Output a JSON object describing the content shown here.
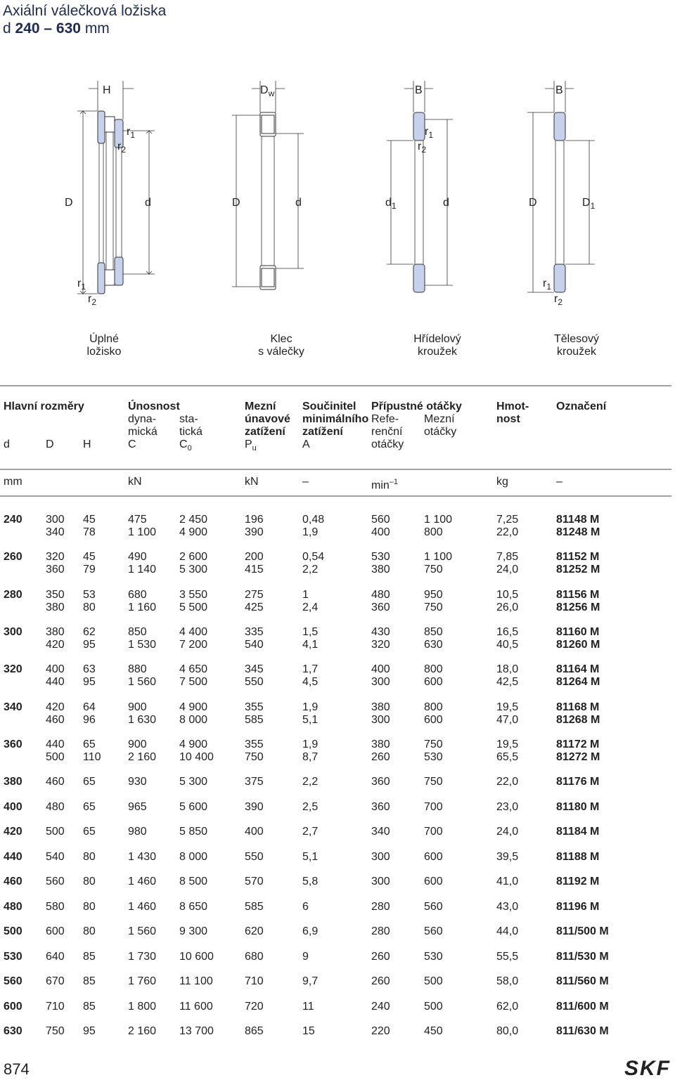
{
  "header": {
    "title": "Axiální válečková ložiska",
    "subtitle": {
      "symbol": "d",
      "range": "240 – 630",
      "unit": "mm"
    }
  },
  "figures": [
    {
      "caption": [
        "Úplné",
        "ložisko"
      ],
      "labels": [
        {
          "base": "H"
        },
        {
          "base": "r",
          "sub": "1"
        },
        {
          "base": "r",
          "sub": "2"
        },
        {
          "base": "D"
        },
        {
          "base": "d"
        },
        {
          "base": "r",
          "sub": "1"
        },
        {
          "base": "r",
          "sub": "2"
        }
      ]
    },
    {
      "caption": [
        "Klec",
        "s válečky"
      ],
      "labels": [
        {
          "base": "D",
          "sub": "w"
        },
        {
          "base": "D"
        },
        {
          "base": "d"
        }
      ]
    },
    {
      "caption": [
        "Hřídelový",
        "kroužek"
      ],
      "labels": [
        {
          "base": "B"
        },
        {
          "base": "r",
          "sub": "1"
        },
        {
          "base": "r",
          "sub": "2"
        },
        {
          "base": "d",
          "sub": "1"
        },
        {
          "base": "d"
        }
      ]
    },
    {
      "caption": [
        "Tělesový",
        "kroužek"
      ],
      "labels": [
        {
          "base": "B"
        },
        {
          "base": "D"
        },
        {
          "base": "D",
          "sub": "1"
        },
        {
          "base": "r",
          "sub": "1"
        },
        {
          "base": "r",
          "sub": "2"
        }
      ]
    }
  ],
  "table": {
    "headings": {
      "main": "Hlavní rozměry",
      "capacity": "Únosnost",
      "dynamic": [
        "dyna-",
        "mická"
      ],
      "static": [
        "sta-",
        "tická"
      ],
      "fatigue": [
        "Mezní",
        "únavové",
        "zatížení"
      ],
      "factor": [
        "Součinitel",
        "minimálního",
        "zatížení"
      ],
      "speeds": "Přípustné otáčky",
      "reference": [
        "Refe-",
        "renční",
        "otáčky"
      ],
      "limiting": [
        "Mezní",
        "otáčky"
      ],
      "mass": [
        "Hmot-",
        "nost"
      ],
      "designation": "Označení"
    },
    "symbols": [
      {
        "base": "d"
      },
      {
        "base": "D"
      },
      {
        "base": "H"
      },
      {
        "base": "C"
      },
      {
        "base": "C",
        "sub": "0"
      },
      {
        "base": "P",
        "sub": "u"
      },
      {
        "base": "A"
      }
    ],
    "units": [
      {
        "base": "mm"
      },
      {
        "base": "kN"
      },
      {
        "base": "kN"
      },
      {
        "base": "–"
      },
      {
        "base": "min",
        "sup": "–1"
      },
      {
        "base": "kg"
      },
      {
        "base": "–"
      }
    ],
    "groups": [
      {
        "d": "240",
        "rows": [
          [
            "300",
            "45",
            "475",
            "2 450",
            "196",
            "0,48",
            "560",
            "1 100",
            "7,25",
            "81148 M"
          ],
          [
            "340",
            "78",
            "1 100",
            "4 900",
            "390",
            "1,9",
            "400",
            "800",
            "22,0",
            "81248 M"
          ]
        ]
      },
      {
        "d": "260",
        "rows": [
          [
            "320",
            "45",
            "490",
            "2 600",
            "200",
            "0,54",
            "530",
            "1 100",
            "7,85",
            "81152 M"
          ],
          [
            "360",
            "79",
            "1 140",
            "5 300",
            "415",
            "2,2",
            "380",
            "750",
            "24,0",
            "81252 M"
          ]
        ]
      },
      {
        "d": "280",
        "rows": [
          [
            "350",
            "53",
            "680",
            "3 550",
            "275",
            "1",
            "480",
            "950",
            "10,5",
            "81156 M"
          ],
          [
            "380",
            "80",
            "1 160",
            "5 500",
            "425",
            "2,4",
            "360",
            "750",
            "26,0",
            "81256 M"
          ]
        ]
      },
      {
        "d": "300",
        "rows": [
          [
            "380",
            "62",
            "850",
            "4 400",
            "335",
            "1,5",
            "430",
            "850",
            "16,5",
            "81160 M"
          ],
          [
            "420",
            "95",
            "1 530",
            "7 200",
            "540",
            "4,1",
            "320",
            "630",
            "40,5",
            "81260 M"
          ]
        ]
      },
      {
        "d": "320",
        "rows": [
          [
            "400",
            "63",
            "880",
            "4 650",
            "345",
            "1,7",
            "400",
            "800",
            "18,0",
            "81164 M"
          ],
          [
            "440",
            "95",
            "1 560",
            "7 500",
            "550",
            "4,5",
            "300",
            "600",
            "42,5",
            "81264 M"
          ]
        ]
      },
      {
        "d": "340",
        "rows": [
          [
            "420",
            "64",
            "900",
            "4 900",
            "355",
            "1,9",
            "380",
            "800",
            "19,5",
            "81168 M"
          ],
          [
            "460",
            "96",
            "1 630",
            "8 000",
            "585",
            "5,1",
            "300",
            "600",
            "47,0",
            "81268 M"
          ]
        ]
      },
      {
        "d": "360",
        "rows": [
          [
            "440",
            "65",
            "900",
            "4 900",
            "355",
            "1,9",
            "380",
            "750",
            "19,5",
            "81172 M"
          ],
          [
            "500",
            "110",
            "2 160",
            "10 400",
            "750",
            "8,7",
            "260",
            "530",
            "65,5",
            "81272 M"
          ]
        ]
      },
      {
        "d": "380",
        "rows": [
          [
            "460",
            "65",
            "930",
            "5 300",
            "375",
            "2,2",
            "360",
            "750",
            "22,0",
            "81176 M"
          ]
        ]
      },
      {
        "d": "400",
        "rows": [
          [
            "480",
            "65",
            "965",
            "5 600",
            "390",
            "2,5",
            "360",
            "700",
            "23,0",
            "81180 M"
          ]
        ]
      },
      {
        "d": "420",
        "rows": [
          [
            "500",
            "65",
            "980",
            "5 850",
            "400",
            "2,7",
            "340",
            "700",
            "24,0",
            "81184 M"
          ]
        ]
      },
      {
        "d": "440",
        "rows": [
          [
            "540",
            "80",
            "1 430",
            "8 000",
            "550",
            "5,1",
            "300",
            "600",
            "39,5",
            "81188 M"
          ]
        ]
      },
      {
        "d": "460",
        "rows": [
          [
            "560",
            "80",
            "1 460",
            "8 500",
            "570",
            "5,8",
            "300",
            "600",
            "41,0",
            "81192 M"
          ]
        ]
      },
      {
        "d": "480",
        "rows": [
          [
            "580",
            "80",
            "1 460",
            "8 650",
            "585",
            "6",
            "280",
            "560",
            "43,0",
            "81196 M"
          ]
        ]
      },
      {
        "d": "500",
        "rows": [
          [
            "600",
            "80",
            "1 560",
            "9 300",
            "620",
            "6,9",
            "280",
            "560",
            "44,0",
            "811/500 M"
          ]
        ]
      },
      {
        "d": "530",
        "rows": [
          [
            "640",
            "85",
            "1 730",
            "10 600",
            "680",
            "9",
            "260",
            "530",
            "55,5",
            "811/530 M"
          ]
        ]
      },
      {
        "d": "560",
        "rows": [
          [
            "670",
            "85",
            "1 760",
            "11 100",
            "710",
            "9,7",
            "260",
            "500",
            "58,0",
            "811/560 M"
          ]
        ]
      },
      {
        "d": "600",
        "rows": [
          [
            "710",
            "85",
            "1 800",
            "11 600",
            "720",
            "11",
            "240",
            "500",
            "62,0",
            "811/600 M"
          ]
        ]
      },
      {
        "d": "630",
        "rows": [
          [
            "750",
            "95",
            "2 160",
            "13 700",
            "865",
            "15",
            "220",
            "450",
            "80,0",
            "811/630 M"
          ]
        ]
      }
    ]
  },
  "footer": {
    "page_number": "874",
    "logo": "SKF"
  }
}
